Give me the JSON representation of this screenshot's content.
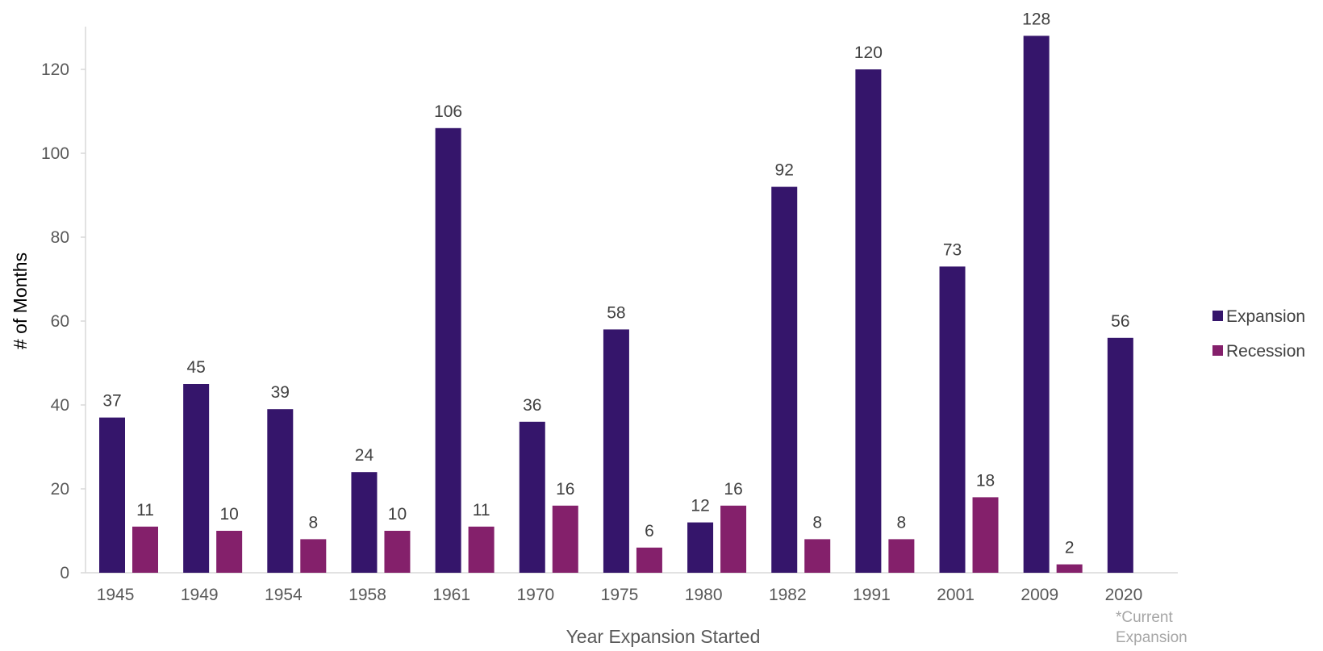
{
  "chart_data": {
    "type": "bar",
    "title": "",
    "xlabel": "Year Expansion Started",
    "ylabel": "# of Months",
    "ylim": [
      0,
      130
    ],
    "yticks": [
      0,
      20,
      40,
      60,
      80,
      100,
      120
    ],
    "grid": false,
    "legend_position": "right",
    "categories": [
      "1945",
      "1949",
      "1954",
      "1958",
      "1961",
      "1970",
      "1975",
      "1980",
      "1982",
      "1991",
      "2001",
      "2009",
      "2020"
    ],
    "series": [
      {
        "name": "Expansion",
        "color": "#35156b",
        "values": [
          37,
          45,
          39,
          24,
          106,
          36,
          58,
          12,
          92,
          120,
          73,
          128,
          56
        ]
      },
      {
        "name": "Recession",
        "color": "#84206b",
        "values": [
          11,
          10,
          8,
          10,
          11,
          16,
          6,
          16,
          8,
          8,
          18,
          2,
          null
        ]
      }
    ],
    "annotation_lines": [
      "*Current",
      "Expansion"
    ]
  }
}
